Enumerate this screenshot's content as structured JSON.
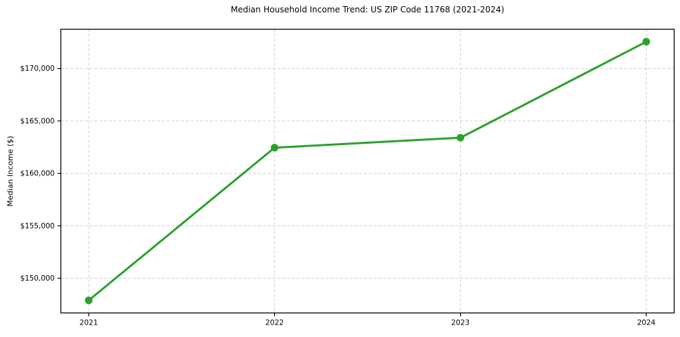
{
  "chart_data": {
    "type": "line",
    "title": "Median Household Income Trend: US ZIP Code 11768 (2021-2024)",
    "xlabel": "",
    "ylabel": "Median Income ($)",
    "x": [
      2021,
      2022,
      2023,
      2024
    ],
    "series": [
      {
        "name": "Median Household Income",
        "values": [
          147900,
          162450,
          163400,
          172550
        ]
      }
    ],
    "xticks": [
      2021,
      2022,
      2023,
      2024
    ],
    "xtick_labels": [
      "2021",
      "2022",
      "2023",
      "2024"
    ],
    "yticks": [
      150000,
      155000,
      160000,
      165000,
      170000
    ],
    "ytick_labels": [
      "$150,000",
      "$155,000",
      "$160,000",
      "$165,000",
      "$170,000"
    ],
    "xlim": [
      2020.85,
      2024.15
    ],
    "ylim": [
      146700,
      173740
    ],
    "grid": true,
    "grid_style": "dashed",
    "legend": false,
    "line_color": "#2ca02c",
    "marker": "circle",
    "grid_color": "#cccccc",
    "axis_color": "#000000",
    "text_color": "#000000",
    "background": "#ffffff"
  }
}
